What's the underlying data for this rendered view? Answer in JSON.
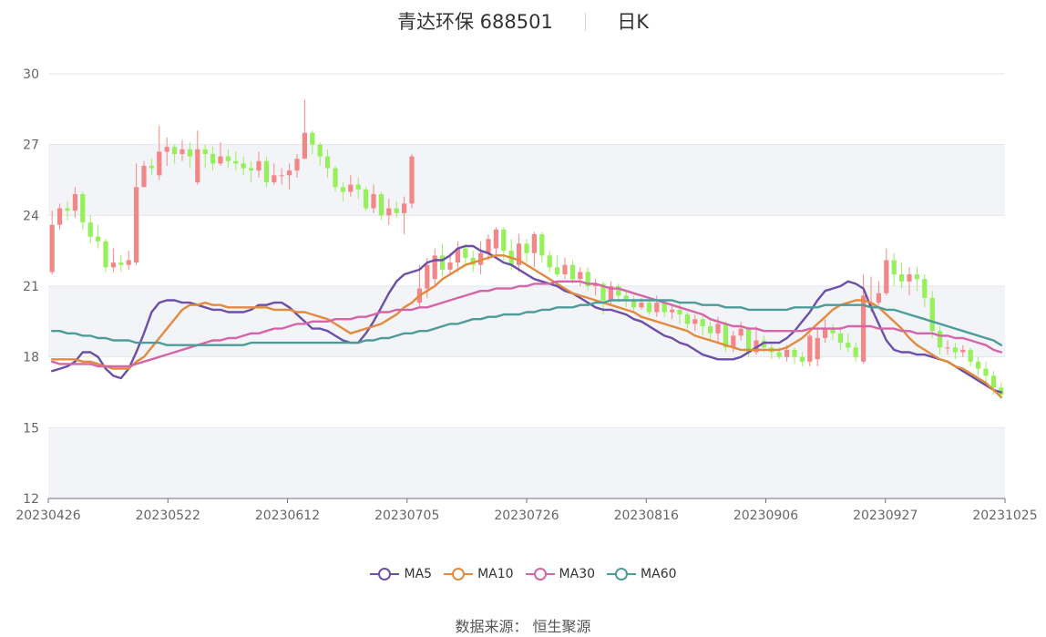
{
  "title": {
    "name": "青达环保 688501",
    "period": "日K"
  },
  "source_text": "数据来源： 恒生聚源",
  "colors": {
    "up": "#f38787",
    "down": "#96f05a",
    "MA5": "#6b4fa8",
    "MA10": "#e38a3c",
    "MA30": "#d466a8",
    "MA60": "#4e9c9a",
    "band": "#f3f4f8",
    "grid": "#e4e6ee"
  },
  "chart_data": {
    "type": "candlestick",
    "ylim": [
      12,
      30
    ],
    "yticks": [
      12,
      15,
      18,
      21,
      24,
      27,
      30
    ],
    "x_tick_labels": [
      "20230426",
      "20230522",
      "20230612",
      "20230705",
      "20230726",
      "20230816",
      "20230906",
      "20230927",
      "20231025"
    ],
    "n_candles": 125,
    "candles": [
      [
        21.6,
        23.6,
        24.2,
        21.5
      ],
      [
        23.6,
        24.3,
        24.5,
        23.4
      ],
      [
        24.3,
        24.2,
        24.6,
        23.8
      ],
      [
        24.2,
        24.9,
        25.2,
        23.9
      ],
      [
        24.9,
        23.7,
        25.0,
        23.4
      ],
      [
        23.7,
        23.1,
        24.0,
        22.8
      ],
      [
        23.1,
        22.9,
        23.6,
        22.6
      ],
      [
        22.9,
        21.8,
        23.0,
        21.6
      ],
      [
        21.8,
        22.0,
        22.6,
        21.6
      ],
      [
        22.0,
        21.9,
        22.3,
        21.6
      ],
      [
        21.9,
        22.1,
        22.5,
        21.7
      ],
      [
        22.0,
        25.2,
        26.2,
        21.9
      ],
      [
        25.2,
        26.1,
        26.3,
        25.5
      ],
      [
        26.1,
        26.0,
        26.4,
        25.7
      ],
      [
        25.7,
        26.7,
        27.8,
        25.5
      ],
      [
        26.7,
        26.9,
        27.3,
        26.1
      ],
      [
        26.9,
        26.6,
        27.0,
        26.2
      ],
      [
        26.6,
        26.8,
        27.2,
        26.3
      ],
      [
        26.8,
        26.5,
        27.1,
        26.0
      ],
      [
        25.4,
        26.8,
        27.6,
        25.3
      ],
      [
        26.8,
        26.6,
        27.0,
        26.0
      ],
      [
        26.6,
        26.2,
        26.9,
        25.9
      ],
      [
        26.2,
        26.5,
        27.1,
        26.1
      ],
      [
        26.5,
        26.3,
        26.8,
        26.0
      ],
      [
        26.3,
        26.2,
        26.7,
        25.9
      ],
      [
        26.2,
        26.0,
        26.5,
        25.7
      ],
      [
        26.0,
        25.9,
        26.3,
        25.4
      ],
      [
        25.9,
        26.3,
        26.7,
        25.6
      ],
      [
        26.3,
        25.4,
        26.5,
        25.2
      ],
      [
        25.4,
        25.7,
        26.2,
        25.3
      ],
      [
        25.7,
        25.7,
        26.0,
        25.3
      ],
      [
        25.7,
        25.9,
        26.2,
        25.1
      ],
      [
        25.9,
        26.4,
        26.6,
        25.6
      ],
      [
        26.4,
        27.5,
        28.9,
        26.4
      ],
      [
        27.5,
        27.0,
        27.6,
        26.6
      ],
      [
        27.0,
        26.5,
        27.1,
        26.1
      ],
      [
        26.5,
        26.0,
        26.8,
        25.6
      ],
      [
        26.0,
        25.2,
        26.1,
        25.0
      ],
      [
        25.2,
        25.0,
        25.4,
        24.6
      ],
      [
        25.0,
        25.3,
        25.7,
        24.8
      ],
      [
        25.3,
        25.1,
        25.6,
        24.7
      ],
      [
        25.1,
        24.3,
        25.2,
        24.2
      ],
      [
        24.3,
        24.9,
        25.3,
        24.1
      ],
      [
        24.9,
        24.0,
        25.0,
        23.8
      ],
      [
        24.0,
        24.3,
        24.7,
        23.6
      ],
      [
        24.3,
        24.1,
        24.6,
        23.9
      ],
      [
        24.1,
        24.5,
        24.8,
        23.2
      ],
      [
        24.5,
        26.5,
        26.6,
        24.3
      ],
      [
        20.3,
        20.9,
        21.9,
        20.1
      ],
      [
        20.9,
        21.9,
        22.2,
        20.5
      ],
      [
        21.3,
        22.3,
        22.6,
        21.0
      ],
      [
        22.3,
        21.7,
        22.8,
        21.4
      ],
      [
        21.7,
        22.0,
        22.4,
        21.5
      ],
      [
        22.0,
        22.6,
        22.9,
        21.6
      ],
      [
        22.6,
        22.2,
        22.8,
        21.8
      ],
      [
        22.2,
        21.9,
        22.5,
        21.6
      ],
      [
        21.9,
        22.4,
        22.9,
        21.5
      ],
      [
        22.4,
        23.0,
        23.2,
        22.1
      ],
      [
        22.6,
        23.4,
        23.5,
        22.3
      ],
      [
        23.4,
        22.5,
        23.5,
        22.1
      ],
      [
        22.5,
        21.9,
        23.0,
        21.7
      ],
      [
        21.9,
        22.8,
        23.2,
        21.6
      ],
      [
        22.8,
        22.4,
        23.0,
        22.0
      ],
      [
        22.4,
        23.2,
        23.3,
        21.8
      ],
      [
        23.2,
        22.3,
        23.3,
        22.0
      ],
      [
        22.3,
        21.8,
        22.5,
        21.6
      ],
      [
        21.8,
        21.5,
        22.3,
        21.4
      ],
      [
        21.5,
        21.9,
        22.2,
        21.3
      ],
      [
        21.9,
        21.3,
        22.1,
        21.1
      ],
      [
        21.3,
        21.6,
        21.8,
        21.0
      ],
      [
        21.6,
        21.0,
        21.8,
        20.8
      ],
      [
        21.0,
        21.1,
        21.3,
        20.6
      ],
      [
        21.1,
        20.4,
        21.2,
        19.8
      ],
      [
        20.4,
        21.0,
        21.2,
        20.2
      ],
      [
        21.0,
        20.6,
        21.1,
        20.3
      ],
      [
        20.6,
        20.4,
        20.8,
        20.1
      ],
      [
        20.4,
        20.1,
        20.6,
        19.9
      ],
      [
        20.1,
        20.3,
        20.5,
        20.0
      ],
      [
        20.3,
        19.9,
        20.5,
        19.8
      ],
      [
        19.9,
        20.3,
        20.6,
        19.7
      ],
      [
        20.3,
        19.9,
        20.4,
        19.7
      ],
      [
        19.9,
        20.0,
        20.2,
        19.6
      ],
      [
        20.0,
        19.8,
        20.3,
        19.4
      ],
      [
        19.8,
        19.4,
        19.9,
        19.2
      ],
      [
        19.4,
        19.6,
        19.8,
        19.1
      ],
      [
        19.6,
        19.3,
        19.8,
        18.9
      ],
      [
        19.3,
        19.0,
        19.5,
        18.7
      ],
      [
        19.0,
        19.4,
        19.7,
        18.6
      ],
      [
        19.4,
        18.4,
        19.5,
        18.2
      ],
      [
        18.4,
        18.9,
        19.1,
        18.2
      ],
      [
        18.9,
        19.2,
        19.5,
        18.7
      ],
      [
        19.2,
        18.2,
        19.3,
        18.0
      ],
      [
        18.2,
        18.7,
        19.3,
        18.1
      ],
      [
        18.7,
        18.4,
        18.9,
        18.2
      ],
      [
        18.4,
        18.2,
        18.6,
        17.9
      ],
      [
        18.2,
        18.0,
        18.4,
        17.9
      ],
      [
        18.0,
        18.3,
        18.5,
        17.8
      ],
      [
        18.3,
        18.0,
        18.4,
        17.7
      ],
      [
        18.0,
        17.8,
        18.2,
        17.6
      ],
      [
        17.8,
        18.9,
        19.0,
        17.6
      ],
      [
        17.9,
        18.8,
        19.2,
        17.6
      ],
      [
        18.8,
        19.2,
        19.6,
        18.6
      ],
      [
        19.2,
        19.0,
        19.4,
        18.7
      ],
      [
        19.0,
        18.6,
        19.3,
        18.3
      ],
      [
        18.6,
        18.4,
        19.0,
        18.2
      ],
      [
        18.4,
        18.0,
        18.6,
        17.8
      ],
      [
        17.8,
        20.6,
        21.5,
        17.7
      ],
      [
        20.1,
        20.3,
        21.4,
        19.9
      ],
      [
        20.3,
        20.7,
        21.2,
        20.2
      ],
      [
        20.7,
        22.1,
        22.6,
        20.6
      ],
      [
        22.1,
        21.5,
        22.4,
        21.0
      ],
      [
        21.5,
        21.2,
        22.0,
        20.9
      ],
      [
        21.2,
        21.5,
        21.8,
        20.6
      ],
      [
        21.5,
        21.3,
        21.8,
        20.8
      ],
      [
        21.3,
        20.5,
        21.5,
        20.1
      ],
      [
        20.5,
        19.1,
        20.8,
        18.8
      ],
      [
        19.1,
        18.4,
        19.3,
        18.1
      ],
      [
        18.4,
        18.4,
        18.7,
        18.1
      ],
      [
        18.4,
        18.2,
        18.6,
        17.9
      ],
      [
        18.2,
        18.3,
        18.5,
        18.0
      ],
      [
        18.3,
        17.8,
        18.4,
        17.6
      ],
      [
        17.8,
        17.5,
        18.0,
        17.2
      ],
      [
        17.5,
        17.2,
        17.8,
        16.9
      ],
      [
        17.2,
        16.7,
        17.4,
        16.4
      ],
      [
        16.7,
        16.4,
        16.9,
        16.2
      ]
    ],
    "series": [
      {
        "name": "MA5",
        "values": [
          17.4,
          17.5,
          17.6,
          17.8,
          18.2,
          18.2,
          18.0,
          17.5,
          17.2,
          17.1,
          17.5,
          18.2,
          19.0,
          19.9,
          20.3,
          20.4,
          20.4,
          20.3,
          20.3,
          20.2,
          20.1,
          20.0,
          20.0,
          19.9,
          19.9,
          19.9,
          20.0,
          20.2,
          20.2,
          20.3,
          20.3,
          20.1,
          19.8,
          19.5,
          19.2,
          19.2,
          19.1,
          18.9,
          18.7,
          18.6,
          18.6,
          19.0,
          19.5,
          20.1,
          20.7,
          21.2,
          21.5,
          21.6,
          21.7,
          22.0,
          22.1,
          22.1,
          22.3,
          22.6,
          22.7,
          22.7,
          22.5,
          22.4,
          22.2,
          22.0,
          21.9,
          21.7,
          21.5,
          21.3,
          21.2,
          21.1,
          21.0,
          20.8,
          20.7,
          20.5,
          20.3,
          20.1,
          20.0,
          20.0,
          19.9,
          19.8,
          19.6,
          19.5,
          19.3,
          19.1,
          18.9,
          18.8,
          18.6,
          18.5,
          18.3,
          18.1,
          18.0,
          17.9,
          17.9,
          17.9,
          18.0,
          18.2,
          18.4,
          18.6,
          18.6,
          18.6,
          18.8,
          19.1,
          19.5,
          19.9,
          20.4,
          20.8,
          20.9,
          21.0,
          21.2,
          21.1,
          20.9,
          20.1,
          19.4,
          18.7,
          18.3,
          18.2,
          18.2,
          18.1,
          18.1,
          18.0,
          17.9,
          17.8,
          17.6,
          17.4,
          17.2,
          17.0,
          16.8,
          16.6,
          16.5
        ]
      },
      {
        "name": "MA10",
        "values": [
          17.9,
          17.9,
          17.9,
          17.9,
          17.8,
          17.8,
          17.7,
          17.6,
          17.5,
          17.5,
          17.5,
          17.8,
          18.0,
          18.4,
          18.8,
          19.2,
          19.6,
          20.0,
          20.2,
          20.2,
          20.3,
          20.2,
          20.2,
          20.1,
          20.1,
          20.1,
          20.1,
          20.1,
          20.1,
          20.0,
          20.0,
          20.0,
          19.9,
          19.9,
          19.8,
          19.7,
          19.6,
          19.4,
          19.2,
          19.0,
          19.1,
          19.2,
          19.3,
          19.4,
          19.6,
          19.8,
          20.1,
          20.3,
          20.6,
          20.8,
          21.0,
          21.3,
          21.5,
          21.7,
          21.9,
          22.0,
          22.1,
          22.2,
          22.3,
          22.3,
          22.2,
          22.1,
          21.9,
          21.7,
          21.5,
          21.3,
          21.1,
          20.9,
          20.7,
          20.6,
          20.5,
          20.4,
          20.3,
          20.2,
          20.1,
          20.0,
          19.9,
          19.7,
          19.6,
          19.5,
          19.4,
          19.3,
          19.2,
          19.1,
          18.9,
          18.8,
          18.7,
          18.6,
          18.5,
          18.4,
          18.3,
          18.3,
          18.3,
          18.3,
          18.3,
          18.3,
          18.4,
          18.6,
          18.8,
          19.1,
          19.4,
          19.7,
          20.0,
          20.2,
          20.3,
          20.4,
          20.4,
          20.3,
          20.1,
          19.8,
          19.5,
          19.2,
          18.8,
          18.5,
          18.3,
          18.1,
          17.9,
          17.8,
          17.6,
          17.5,
          17.3,
          17.1,
          16.9,
          16.6,
          16.3
        ]
      },
      {
        "name": "MA30",
        "values": [
          17.8,
          17.7,
          17.7,
          17.7,
          17.7,
          17.7,
          17.6,
          17.6,
          17.6,
          17.6,
          17.6,
          17.7,
          17.8,
          17.9,
          18.0,
          18.1,
          18.2,
          18.3,
          18.4,
          18.5,
          18.6,
          18.7,
          18.7,
          18.8,
          18.8,
          18.9,
          19.0,
          19.0,
          19.1,
          19.2,
          19.2,
          19.3,
          19.4,
          19.4,
          19.5,
          19.5,
          19.5,
          19.6,
          19.6,
          19.6,
          19.7,
          19.7,
          19.8,
          19.9,
          19.9,
          20.0,
          20.0,
          20.0,
          20.1,
          20.1,
          20.2,
          20.3,
          20.4,
          20.5,
          20.6,
          20.7,
          20.8,
          20.8,
          20.9,
          20.9,
          20.9,
          21.0,
          21.0,
          21.1,
          21.1,
          21.1,
          21.2,
          21.2,
          21.2,
          21.2,
          21.1,
          21.1,
          21.0,
          20.9,
          20.9,
          20.8,
          20.7,
          20.6,
          20.5,
          20.4,
          20.3,
          20.2,
          20.1,
          20.0,
          19.9,
          19.8,
          19.6,
          19.5,
          19.4,
          19.3,
          19.3,
          19.2,
          19.2,
          19.1,
          19.1,
          19.1,
          19.1,
          19.1,
          19.1,
          19.2,
          19.2,
          19.2,
          19.2,
          19.2,
          19.3,
          19.3,
          19.3,
          19.3,
          19.2,
          19.2,
          19.2,
          19.1,
          19.1,
          19.0,
          19.0,
          19.0,
          18.9,
          18.9,
          18.8,
          18.8,
          18.7,
          18.6,
          18.5,
          18.3,
          18.2
        ]
      },
      {
        "name": "MA60",
        "values": [
          19.1,
          19.1,
          19.0,
          19.0,
          18.9,
          18.9,
          18.8,
          18.8,
          18.7,
          18.7,
          18.7,
          18.6,
          18.6,
          18.6,
          18.6,
          18.5,
          18.5,
          18.5,
          18.5,
          18.5,
          18.5,
          18.5,
          18.5,
          18.5,
          18.5,
          18.5,
          18.6,
          18.6,
          18.6,
          18.6,
          18.6,
          18.6,
          18.6,
          18.6,
          18.6,
          18.6,
          18.6,
          18.6,
          18.6,
          18.6,
          18.6,
          18.7,
          18.7,
          18.8,
          18.8,
          18.9,
          19.0,
          19.0,
          19.1,
          19.1,
          19.2,
          19.3,
          19.4,
          19.4,
          19.5,
          19.6,
          19.6,
          19.7,
          19.7,
          19.8,
          19.8,
          19.8,
          19.9,
          19.9,
          20.0,
          20.0,
          20.1,
          20.1,
          20.1,
          20.2,
          20.2,
          20.3,
          20.3,
          20.4,
          20.4,
          20.4,
          20.4,
          20.4,
          20.4,
          20.4,
          20.4,
          20.4,
          20.3,
          20.3,
          20.3,
          20.2,
          20.2,
          20.2,
          20.1,
          20.1,
          20.1,
          20.0,
          20.0,
          20.0,
          20.0,
          20.0,
          20.0,
          20.1,
          20.1,
          20.1,
          20.1,
          20.2,
          20.2,
          20.2,
          20.2,
          20.2,
          20.2,
          20.1,
          20.1,
          20.0,
          20.0,
          19.9,
          19.8,
          19.7,
          19.6,
          19.5,
          19.4,
          19.3,
          19.2,
          19.1,
          19.0,
          18.9,
          18.8,
          18.7,
          18.5
        ]
      }
    ],
    "legend_position": "bottom-center"
  }
}
